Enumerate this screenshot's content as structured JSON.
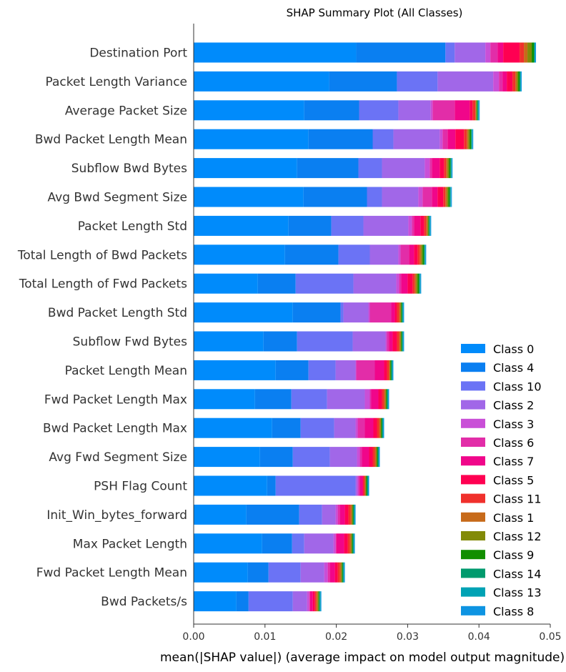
{
  "chart_data": {
    "type": "bar",
    "orientation": "horizontal",
    "stacked": true,
    "title": "SHAP Summary Plot (All Classes)",
    "xlabel": "mean(|SHAP value|) (average impact on model output magnitude)",
    "ylabel": "",
    "xlim": [
      0,
      0.05
    ],
    "xticks": [
      "0.00",
      "0.01",
      "0.02",
      "0.03",
      "0.04",
      "0.05"
    ],
    "grid": false,
    "legend_position": "bottom-right",
    "categories": [
      "Destination Port",
      "Packet Length Variance",
      "Average Packet Size",
      "Bwd Packet Length Mean",
      "Subflow Bwd Bytes",
      "Avg Bwd Segment Size",
      "Packet Length Std",
      "Total Length of Bwd Packets",
      "Total Length of Fwd Packets",
      "Bwd Packet Length Std",
      "Subflow Fwd Bytes",
      "Packet Length Mean",
      "Fwd Packet Length Max",
      "Bwd Packet Length Max",
      "Avg Fwd Segment Size",
      "PSH Flag Count",
      "Init_Win_bytes_forward",
      "Max Packet Length",
      "Fwd Packet Length Mean",
      "Bwd Packets/s"
    ],
    "series": [
      {
        "name": "Class 0",
        "color": "#008bfb",
        "values": [
          0.0228,
          0.019,
          0.0155,
          0.0161,
          0.0145,
          0.0154,
          0.0133,
          0.0128,
          0.009,
          0.0139,
          0.0098,
          0.0115,
          0.0086,
          0.011,
          0.0093,
          0.0103,
          0.0074,
          0.0096,
          0.0076,
          0.006
        ]
      },
      {
        "name": "Class 4",
        "color": "#0a7ff1",
        "values": [
          0.0125,
          0.0095,
          0.0077,
          0.009,
          0.0086,
          0.0089,
          0.006,
          0.0075,
          0.0053,
          0.0067,
          0.0047,
          0.0046,
          0.0051,
          0.004,
          0.0046,
          0.0012,
          0.0074,
          0.0042,
          0.0029,
          0.0017
        ]
      },
      {
        "name": "Class 10",
        "color": "#6b73f5",
        "values": [
          0.0013,
          0.0057,
          0.0055,
          0.0029,
          0.0033,
          0.0021,
          0.0045,
          0.0044,
          0.0081,
          0.0004,
          0.0078,
          0.0038,
          0.005,
          0.0047,
          0.0052,
          0.0112,
          0.0032,
          0.0017,
          0.0045,
          0.0062
        ]
      },
      {
        "name": "Class 2",
        "color": "#a167e8",
        "values": [
          0.0043,
          0.0078,
          0.0045,
          0.0065,
          0.006,
          0.0051,
          0.0063,
          0.004,
          0.006,
          0.0035,
          0.0046,
          0.0028,
          0.0053,
          0.003,
          0.0038,
          0.0002,
          0.0019,
          0.0041,
          0.0033,
          0.002
        ]
      },
      {
        "name": "Class 3",
        "color": "#c94fd7",
        "values": [
          0.0007,
          0.0008,
          0.0003,
          0.0004,
          0.0007,
          0.0006,
          0.0005,
          0.0003,
          0.0004,
          0.0002,
          0.0002,
          0.0001,
          0.0007,
          0.0003,
          0.0004,
          0.0002,
          0.0003,
          0.0003,
          0.0005,
          0.0003
        ]
      },
      {
        "name": "Class 6",
        "color": "#e22da8",
        "values": [
          0.001,
          0.0005,
          0.0031,
          0.0007,
          0.0003,
          0.0013,
          0.0003,
          0.0012,
          0.0003,
          0.003,
          0.0003,
          0.0026,
          0.0002,
          0.001,
          0.0003,
          0.0002,
          0.0003,
          0.0001,
          0.0003,
          0.0001
        ]
      },
      {
        "name": "Class 7",
        "color": "#f0068a",
        "values": [
          0.0008,
          0.0006,
          0.0021,
          0.0011,
          0.0011,
          0.0008,
          0.0009,
          0.0007,
          0.0009,
          0.0005,
          0.0005,
          0.0013,
          0.001,
          0.0012,
          0.001,
          0.0004,
          0.0007,
          0.0011,
          0.0007,
          0.0004
        ]
      },
      {
        "name": "Class 5",
        "color": "#ff0052",
        "values": [
          0.0023,
          0.0008,
          0.0004,
          0.0012,
          0.0006,
          0.0008,
          0.0005,
          0.0005,
          0.0007,
          0.0003,
          0.0006,
          0.0004,
          0.0005,
          0.0005,
          0.0005,
          0.0001,
          0.0005,
          0.0005,
          0.0004,
          0.0003
        ]
      },
      {
        "name": "Class 11",
        "color": "#f0302c",
        "values": [
          0.0006,
          0.0004,
          0.0004,
          0.0004,
          0.0003,
          0.0003,
          0.0003,
          0.0003,
          0.0003,
          0.0003,
          0.0003,
          0.0003,
          0.0003,
          0.0003,
          0.0003,
          0.0002,
          0.0003,
          0.0003,
          0.0003,
          0.0002
        ]
      },
      {
        "name": "Class 1",
        "color": "#c76a1a",
        "values": [
          0.0005,
          0.0002,
          0.0001,
          0.0002,
          0.0002,
          0.0002,
          0.0002,
          0.0002,
          0.0002,
          0.0002,
          0.0002,
          0.0001,
          0.0002,
          0.0002,
          0.0002,
          0.0001,
          0.0002,
          0.0002,
          0.0002,
          0.0002
        ]
      },
      {
        "name": "Class 12",
        "color": "#828a07",
        "values": [
          0.0006,
          0.0002,
          0.0001,
          0.0002,
          0.0002,
          0.0002,
          0.0001,
          0.0002,
          0.0002,
          0.0001,
          0.0001,
          0.0001,
          0.0001,
          0.0001,
          0.0001,
          0.0001,
          0.0001,
          0.0001,
          0.0001,
          0.0001
        ]
      },
      {
        "name": "Class 9",
        "color": "#128f00",
        "values": [
          0.0003,
          0.0002,
          0.0001,
          0.0002,
          0.0002,
          0.0002,
          0.0001,
          0.0002,
          0.0002,
          0.0001,
          0.0001,
          0.0001,
          0.0001,
          0.0001,
          0.0001,
          0.0001,
          0.0001,
          0.0001,
          0.0001,
          0.0001
        ]
      },
      {
        "name": "Class 14",
        "color": "#009a6d",
        "values": [
          0.0001,
          0.0001,
          0.0001,
          0.0001,
          0.0001,
          0.0001,
          0.0001,
          0.0001,
          0.0001,
          0.0001,
          0.0001,
          0.0001,
          0.0001,
          0.0001,
          0.0001,
          0.0001,
          0.0001,
          0.0001,
          0.0001,
          0.0001
        ]
      },
      {
        "name": "Class 13",
        "color": "#00a2b4",
        "values": [
          0.0001,
          0.0001,
          0.0001,
          0.0001,
          0.0001,
          0.0001,
          0.0001,
          0.0001,
          0.0001,
          0.0001,
          0.0001,
          0.0001,
          0.0001,
          0.0001,
          0.0001,
          0.0001,
          0.0001,
          0.0001,
          0.0001,
          0.0001
        ]
      },
      {
        "name": "Class 8",
        "color": "#0e94e2",
        "values": [
          0.0001,
          0.0001,
          0.0001,
          0.0001,
          0.0001,
          0.0001,
          0.0001,
          0.0001,
          0.0001,
          0.0001,
          0.0001,
          0.0001,
          0.0001,
          0.0001,
          0.0001,
          0.0001,
          0.0001,
          0.0001,
          0.0001,
          0.0001
        ]
      }
    ]
  }
}
